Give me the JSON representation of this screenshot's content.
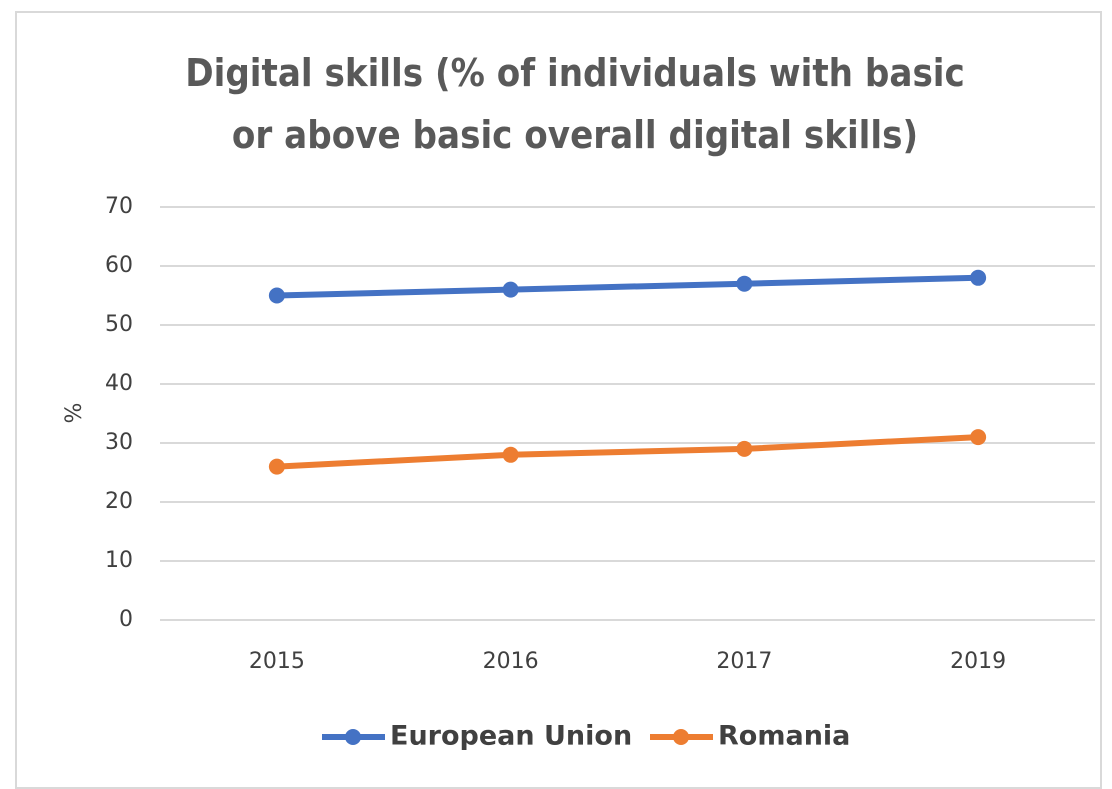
{
  "chart_data": {
    "type": "line",
    "title": "Digital skills (% of individuals with basic or above basic overall digital skills)",
    "ylabel": "%",
    "categories": [
      "2015",
      "2016",
      "2017",
      "2019"
    ],
    "series": [
      {
        "name": "European Union",
        "color": "#4472c4",
        "values": [
          55,
          56,
          57,
          58
        ]
      },
      {
        "name": "Romania",
        "color": "#ed7d31",
        "values": [
          26,
          28,
          29,
          31
        ]
      }
    ],
    "ylim": [
      0,
      70
    ],
    "yticks": [
      0,
      10,
      20,
      30,
      40,
      50,
      60,
      70
    ],
    "grid": true,
    "legend": "bottom"
  }
}
